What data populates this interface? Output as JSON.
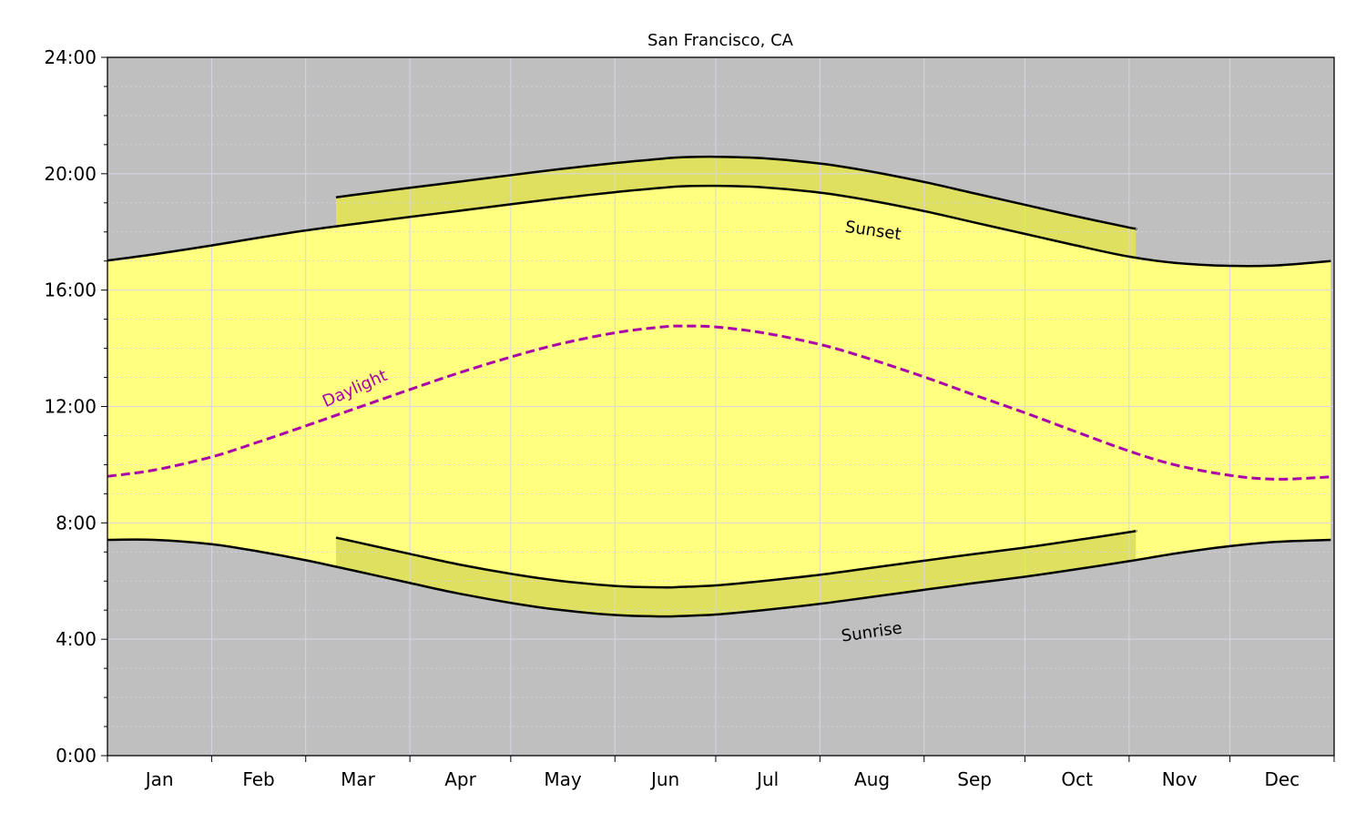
{
  "chart_data": {
    "type": "area",
    "title": "San Francisco, CA",
    "xlabel": "",
    "ylabel": "",
    "ylim": [
      0,
      24
    ],
    "yticks": [
      "0:00",
      "4:00",
      "8:00",
      "12:00",
      "16:00",
      "20:00",
      "24:00"
    ],
    "xtick_labels": [
      "Jan",
      "Feb",
      "Mar",
      "Apr",
      "May",
      "Jun",
      "Jul",
      "Aug",
      "Sep",
      "Oct",
      "Nov",
      "Dec"
    ],
    "grid": true,
    "colors": {
      "night": "#bfbfbf",
      "day": "#ffff80",
      "dst_band": "#dfdf60",
      "daylight_line": "#aa00aa",
      "curve": "#000000",
      "grid": "#d6d6e6"
    },
    "dates": [
      "Jan 1",
      "Jan 15",
      "Feb 1",
      "Feb 15",
      "Mar 1",
      "Mar 15",
      "Apr 1",
      "Apr 15",
      "May 1",
      "May 15",
      "Jun 1",
      "Jun 15",
      "Jun 21",
      "Jul 1",
      "Jul 15",
      "Aug 1",
      "Aug 15",
      "Sep 1",
      "Sep 15",
      "Oct 1",
      "Oct 15",
      "Nov 1",
      "Nov 15",
      "Dec 1",
      "Dec 15",
      "Dec 31"
    ],
    "series": [
      {
        "name": "Sunrise",
        "values": [
          "7:25",
          "7:25",
          "7:16",
          "7:01",
          "6:43",
          "6:22",
          "5:56",
          "5:35",
          "5:15",
          "5:01",
          "4:50",
          "4:47",
          "4:48",
          "4:51",
          "5:00",
          "5:13",
          "5:26",
          "5:42",
          "5:55",
          "6:09",
          "6:23",
          "6:41",
          "6:57",
          "7:12",
          "7:21",
          "7:25"
        ]
      },
      {
        "name": "Sunset",
        "values": [
          "17:01",
          "17:14",
          "17:32",
          "17:48",
          "18:03",
          "18:16",
          "18:31",
          "18:43",
          "18:57",
          "19:09",
          "19:22",
          "19:31",
          "19:34",
          "19:35",
          "19:32",
          "19:21",
          "19:06",
          "18:43",
          "18:21",
          "17:56",
          "17:34",
          "17:09",
          "16:56",
          "16:50",
          "16:51",
          "17:00"
        ]
      },
      {
        "name": "Daylight",
        "style": "dashed",
        "values": [
          "9:36",
          "9:49",
          "10:16",
          "10:47",
          "11:20",
          "11:54",
          "12:35",
          "13:08",
          "13:42",
          "14:08",
          "14:32",
          "14:44",
          "14:46",
          "14:44",
          "14:32",
          "14:08",
          "13:40",
          "13:01",
          "12:26",
          "11:47",
          "11:11",
          "10:28",
          "9:59",
          "9:38",
          "9:30",
          "9:35"
        ]
      }
    ],
    "dst": {
      "start": "Mar 10",
      "end": "Nov 3",
      "offset_hours": 1
    },
    "annotations": {
      "sunset": "Sunset",
      "sunrise": "Sunrise",
      "daylight": "Daylight"
    }
  }
}
